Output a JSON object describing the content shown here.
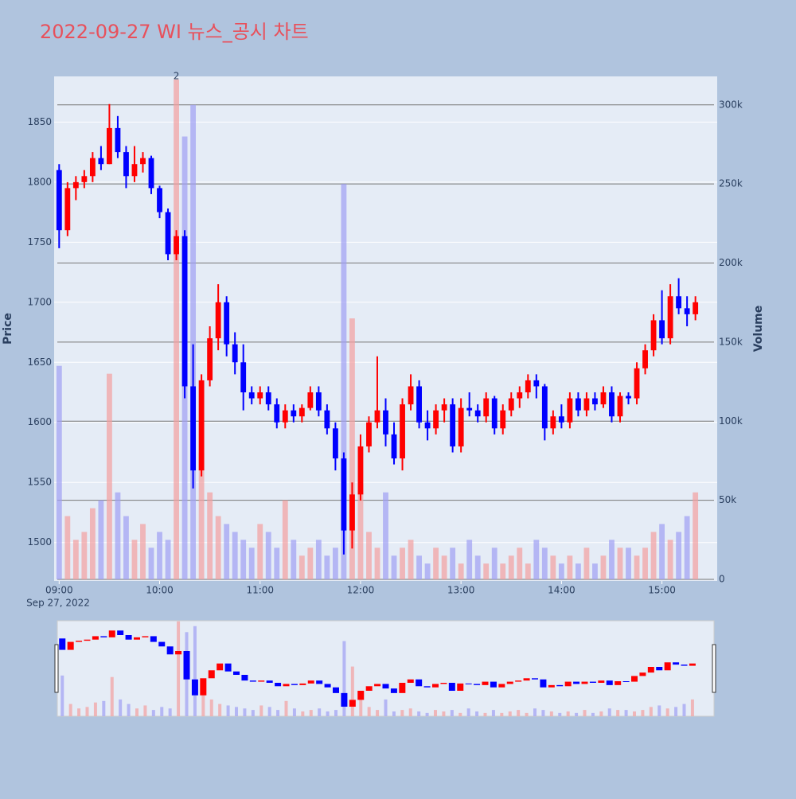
{
  "chart_data": {
    "type": "candlestick",
    "title": "2022-09-27 WI 뉴스_공시 차트",
    "y_title": "Price",
    "y2_title": "Volume",
    "x_date_label": "Sep 27, 2022",
    "annotation": {
      "text": "2",
      "x": "10:10"
    },
    "increasing_color": "#ff0000",
    "decreasing_color": "#0000ff",
    "xlim": [
      "08:57",
      "15:33"
    ],
    "xticks": [
      "09:00",
      "10:00",
      "11:00",
      "12:00",
      "13:00",
      "14:00",
      "15:00"
    ],
    "ylim": [
      1468,
      1888
    ],
    "yticks": [
      1500,
      1550,
      1600,
      1650,
      1700,
      1750,
      1800,
      1850
    ],
    "y2lim": [
      -1000,
      318000
    ],
    "y2ticks": [
      0,
      {
        "value": 50000,
        "label": "50k"
      },
      {
        "value": 100000,
        "label": "100k"
      },
      {
        "value": 150000,
        "label": "150k"
      },
      {
        "value": 200000,
        "label": "200k"
      },
      {
        "value": 250000,
        "label": "250k"
      },
      {
        "value": 300000,
        "label": "300k"
      }
    ],
    "x": [
      "09:00",
      "09:05",
      "09:10",
      "09:15",
      "09:20",
      "09:25",
      "09:30",
      "09:35",
      "09:40",
      "09:45",
      "09:50",
      "09:55",
      "10:00",
      "10:05",
      "10:10",
      "10:15",
      "10:20",
      "10:25",
      "10:30",
      "10:35",
      "10:40",
      "10:45",
      "10:50",
      "10:55",
      "11:00",
      "11:05",
      "11:10",
      "11:15",
      "11:20",
      "11:25",
      "11:30",
      "11:35",
      "11:40",
      "11:45",
      "11:50",
      "11:55",
      "12:00",
      "12:05",
      "12:10",
      "12:15",
      "12:20",
      "12:25",
      "12:30",
      "12:35",
      "12:40",
      "12:45",
      "12:50",
      "12:55",
      "13:00",
      "13:05",
      "13:10",
      "13:15",
      "13:20",
      "13:25",
      "13:30",
      "13:35",
      "13:40",
      "13:45",
      "13:50",
      "13:55",
      "14:00",
      "14:05",
      "14:10",
      "14:15",
      "14:20",
      "14:25",
      "14:30",
      "14:35",
      "14:40",
      "14:45",
      "14:50",
      "14:55",
      "15:00",
      "15:05",
      "15:10",
      "15:15",
      "15:20"
    ],
    "open": [
      1810,
      1760,
      1795,
      1800,
      1805,
      1820,
      1815,
      1845,
      1825,
      1805,
      1815,
      1820,
      1795,
      1775,
      1740,
      1755,
      1630,
      1560,
      1635,
      1670,
      1700,
      1665,
      1650,
      1625,
      1620,
      1625,
      1615,
      1600,
      1610,
      1605,
      1612,
      1625,
      1610,
      1595,
      1570,
      1510,
      1540,
      1580,
      1600,
      1610,
      1590,
      1570,
      1615,
      1630,
      1600,
      1595,
      1610,
      1615,
      1580,
      1612,
      1610,
      1605,
      1620,
      1595,
      1610,
      1620,
      1625,
      1635,
      1630,
      1595,
      1605,
      1600,
      1620,
      1610,
      1620,
      1615,
      1625,
      1605,
      1622,
      1620,
      1645,
      1660,
      1685,
      1670,
      1705,
      1695,
      1690
    ],
    "high": [
      1815,
      1800,
      1805,
      1810,
      1825,
      1830,
      1865,
      1855,
      1830,
      1830,
      1825,
      1822,
      1797,
      1778,
      1760,
      1760,
      1665,
      1640,
      1680,
      1715,
      1705,
      1675,
      1665,
      1630,
      1630,
      1630,
      1620,
      1615,
      1615,
      1615,
      1630,
      1630,
      1615,
      1600,
      1575,
      1550,
      1590,
      1605,
      1655,
      1620,
      1600,
      1620,
      1640,
      1635,
      1610,
      1615,
      1620,
      1620,
      1620,
      1625,
      1615,
      1625,
      1622,
      1615,
      1625,
      1630,
      1640,
      1640,
      1632,
      1610,
      1615,
      1625,
      1625,
      1625,
      1625,
      1630,
      1630,
      1625,
      1625,
      1650,
      1665,
      1690,
      1710,
      1715,
      1720,
      1705,
      1705
    ],
    "low": [
      1745,
      1755,
      1785,
      1795,
      1800,
      1810,
      1815,
      1820,
      1795,
      1800,
      1808,
      1790,
      1770,
      1735,
      1735,
      1620,
      1545,
      1555,
      1630,
      1660,
      1655,
      1640,
      1610,
      1615,
      1615,
      1610,
      1595,
      1595,
      1600,
      1600,
      1610,
      1605,
      1590,
      1560,
      1490,
      1495,
      1535,
      1575,
      1595,
      1580,
      1565,
      1560,
      1610,
      1595,
      1585,
      1590,
      1600,
      1575,
      1575,
      1605,
      1600,
      1600,
      1590,
      1590,
      1605,
      1612,
      1620,
      1620,
      1585,
      1590,
      1595,
      1595,
      1605,
      1605,
      1610,
      1612,
      1600,
      1600,
      1615,
      1615,
      1640,
      1655,
      1665,
      1665,
      1690,
      1680,
      1685
    ],
    "close": [
      1760,
      1795,
      1800,
      1805,
      1820,
      1815,
      1845,
      1825,
      1805,
      1815,
      1820,
      1795,
      1775,
      1740,
      1755,
      1630,
      1560,
      1635,
      1670,
      1700,
      1665,
      1650,
      1625,
      1620,
      1625,
      1615,
      1600,
      1610,
      1605,
      1612,
      1625,
      1610,
      1595,
      1570,
      1510,
      1540,
      1580,
      1600,
      1610,
      1590,
      1570,
      1615,
      1630,
      1600,
      1595,
      1610,
      1615,
      1580,
      1612,
      1610,
      1605,
      1620,
      1595,
      1610,
      1620,
      1625,
      1635,
      1630,
      1595,
      1605,
      1600,
      1620,
      1610,
      1620,
      1615,
      1625,
      1605,
      1622,
      1620,
      1645,
      1660,
      1685,
      1670,
      1705,
      1695,
      1690,
      1700
    ],
    "volume": [
      135000,
      40000,
      25000,
      30000,
      45000,
      50000,
      130000,
      55000,
      40000,
      25000,
      35000,
      20000,
      30000,
      25000,
      316000,
      280000,
      300000,
      80000,
      55000,
      40000,
      35000,
      30000,
      25000,
      20000,
      35000,
      30000,
      20000,
      50000,
      25000,
      15000,
      20000,
      25000,
      15000,
      20000,
      250000,
      165000,
      60000,
      30000,
      20000,
      55000,
      15000,
      20000,
      25000,
      15000,
      10000,
      20000,
      15000,
      20000,
      10000,
      25000,
      15000,
      10000,
      20000,
      10000,
      15000,
      20000,
      10000,
      25000,
      20000,
      15000,
      10000,
      15000,
      10000,
      20000,
      10000,
      15000,
      25000,
      20000,
      20000,
      15000,
      20000,
      30000,
      35000,
      25000,
      30000,
      40000,
      55000
    ]
  }
}
